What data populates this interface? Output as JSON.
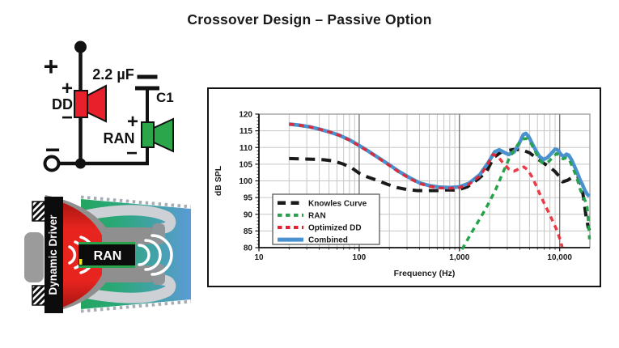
{
  "page": {
    "title": "Crossover Design – Passive Option"
  },
  "circuit": {
    "plus": "+",
    "minus": "−",
    "cap_value": "2.2 µF",
    "cap_ref": "C1",
    "dd_label": "DD",
    "ran_label": "RAN",
    "dd_color": "#e8202c",
    "ran_color": "#2ba64a"
  },
  "driver_illustration": {
    "left_label": "Dynamic Driver",
    "center_label": "RAN",
    "red": "#e8241f",
    "green": "#2aa878",
    "blue": "#5b9bd5"
  },
  "chart_data": {
    "type": "line",
    "title": "",
    "xlabel": "Frequency (Hz)",
    "ylabel": "dB SPL",
    "x_scale": "log",
    "xlim": [
      10,
      20000
    ],
    "ylim": [
      80,
      120
    ],
    "grid": true,
    "legend_position": "lower-left",
    "x_ticks": [
      10,
      100,
      1000,
      10000
    ],
    "x_tick_labels": [
      "10",
      "100",
      "1,000",
      "10,000"
    ],
    "y_ticks": [
      80,
      85,
      90,
      95,
      100,
      105,
      110,
      115,
      120
    ],
    "y_tick_labels": [
      "80",
      "85",
      "90",
      "95",
      "100",
      "105",
      "110",
      "115",
      "120"
    ],
    "series": [
      {
        "name": "Knowles Curve",
        "color": "#1a1a1a",
        "style": "dashed-long",
        "width": 4,
        "points": [
          [
            20,
            106.7
          ],
          [
            26,
            106.6
          ],
          [
            34,
            106.5
          ],
          [
            45,
            106.3
          ],
          [
            55,
            106
          ],
          [
            70,
            105
          ],
          [
            85,
            103.8
          ],
          [
            100,
            102.3
          ],
          [
            120,
            101.2
          ],
          [
            150,
            100.2
          ],
          [
            190,
            99
          ],
          [
            240,
            98
          ],
          [
            300,
            97.4
          ],
          [
            380,
            97.1
          ],
          [
            480,
            97.1
          ],
          [
            600,
            97.1
          ],
          [
            750,
            97.3
          ],
          [
            950,
            97.2
          ],
          [
            1200,
            98.2
          ],
          [
            1500,
            100.3
          ],
          [
            1850,
            102.6
          ],
          [
            2200,
            107
          ],
          [
            2600,
            108.6
          ],
          [
            3000,
            109.1
          ],
          [
            3500,
            109.4
          ],
          [
            4200,
            109.3
          ],
          [
            5000,
            108.4
          ],
          [
            6000,
            106.6
          ],
          [
            7000,
            105.2
          ],
          [
            8000,
            104.1
          ],
          [
            9000,
            102.8
          ],
          [
            10000,
            101.2
          ],
          [
            10700,
            99.7
          ],
          [
            12000,
            100.2
          ],
          [
            13800,
            101.4
          ],
          [
            15300,
            101.2
          ],
          [
            16500,
            98.5
          ],
          [
            17300,
            95
          ],
          [
            18200,
            90
          ],
          [
            19200,
            86.2
          ],
          [
            19800,
            85.2
          ]
        ]
      },
      {
        "name": "RAN",
        "color": "#27a24b",
        "style": "dashed",
        "width": 3.5,
        "points": [
          [
            1060,
            79.5
          ],
          [
            1200,
            82.3
          ],
          [
            1400,
            85.8
          ],
          [
            1650,
            89.3
          ],
          [
            1950,
            93.2
          ],
          [
            2300,
            97.4
          ],
          [
            2700,
            102.3
          ],
          [
            3100,
            106.4
          ],
          [
            3500,
            109.2
          ],
          [
            3900,
            111.2
          ],
          [
            4300,
            112.5
          ],
          [
            4700,
            112.7
          ],
          [
            5100,
            111.6
          ],
          [
            5600,
            109.3
          ],
          [
            6100,
            107
          ],
          [
            6600,
            105.6
          ],
          [
            7100,
            105.2
          ],
          [
            7800,
            105.8
          ],
          [
            8600,
            107.2
          ],
          [
            9300,
            108.2
          ],
          [
            10000,
            107.6
          ],
          [
            10800,
            106.6
          ],
          [
            11700,
            106.9
          ],
          [
            12500,
            106.3
          ],
          [
            13500,
            104
          ],
          [
            14800,
            101
          ],
          [
            16000,
            97.5
          ],
          [
            17000,
            95.5
          ],
          [
            18000,
            94
          ],
          [
            18800,
            92
          ],
          [
            19400,
            87
          ],
          [
            19800,
            82.5
          ]
        ]
      },
      {
        "name": "Optimized DD",
        "color": "#e8202c",
        "style": "dashed",
        "width": 3.5,
        "opacity": 0.88,
        "points": [
          [
            20,
            117
          ],
          [
            25,
            116.7
          ],
          [
            32,
            116.2
          ],
          [
            40,
            115.5
          ],
          [
            50,
            114.7
          ],
          [
            63,
            113.7
          ],
          [
            80,
            112.2
          ],
          [
            100,
            110.5
          ],
          [
            125,
            108.7
          ],
          [
            160,
            106.6
          ],
          [
            200,
            104.6
          ],
          [
            250,
            102.6
          ],
          [
            320,
            100.7
          ],
          [
            400,
            99.2
          ],
          [
            500,
            98.4
          ],
          [
            640,
            97.9
          ],
          [
            800,
            97.8
          ],
          [
            1000,
            98
          ],
          [
            1250,
            99
          ],
          [
            1600,
            101.5
          ],
          [
            1900,
            104.7
          ],
          [
            2150,
            107.9
          ],
          [
            2400,
            107.5
          ],
          [
            2700,
            105.5
          ],
          [
            3100,
            103.6
          ],
          [
            3500,
            102.9
          ],
          [
            4000,
            103.7
          ],
          [
            4400,
            104.2
          ],
          [
            4800,
            103.3
          ],
          [
            5300,
            101.2
          ],
          [
            5900,
            98.2
          ],
          [
            6600,
            94.9
          ],
          [
            7400,
            91.8
          ],
          [
            8300,
            88.7
          ],
          [
            9200,
            85.8
          ],
          [
            10000,
            82.8
          ],
          [
            10600,
            80.2
          ]
        ]
      },
      {
        "name": "Combined",
        "color": "#4a92cf",
        "style": "solid",
        "width": 4.5,
        "points": [
          [
            20,
            117
          ],
          [
            25,
            116.7
          ],
          [
            32,
            116.2
          ],
          [
            40,
            115.5
          ],
          [
            50,
            114.7
          ],
          [
            63,
            113.7
          ],
          [
            80,
            112.3
          ],
          [
            100,
            110.6
          ],
          [
            125,
            108.8
          ],
          [
            160,
            106.7
          ],
          [
            200,
            104.8
          ],
          [
            250,
            102.8
          ],
          [
            320,
            100.9
          ],
          [
            400,
            99.4
          ],
          [
            500,
            98.6
          ],
          [
            640,
            98.1
          ],
          [
            800,
            98
          ],
          [
            1000,
            98.2
          ],
          [
            1250,
            99.3
          ],
          [
            1600,
            101.9
          ],
          [
            1950,
            105.6
          ],
          [
            2250,
            108.7
          ],
          [
            2500,
            109.3
          ],
          [
            2800,
            108.5
          ],
          [
            3100,
            107.9
          ],
          [
            3500,
            108.6
          ],
          [
            3900,
            110.9
          ],
          [
            4350,
            113.9
          ],
          [
            4600,
            114.2
          ],
          [
            4900,
            113.3
          ],
          [
            5300,
            111.3
          ],
          [
            5800,
            109
          ],
          [
            6300,
            107.3
          ],
          [
            6900,
            106.4
          ],
          [
            7500,
            106.9
          ],
          [
            8200,
            108.1
          ],
          [
            9000,
            109.5
          ],
          [
            9600,
            109.2
          ],
          [
            10300,
            107.9
          ],
          [
            11000,
            107.3
          ],
          [
            11700,
            108
          ],
          [
            12300,
            107.7
          ],
          [
            13200,
            106.2
          ],
          [
            14200,
            104
          ],
          [
            15000,
            102.4
          ],
          [
            16000,
            100.2
          ],
          [
            16800,
            99
          ],
          [
            17800,
            97.2
          ],
          [
            18800,
            96
          ],
          [
            19800,
            95.4
          ]
        ]
      }
    ]
  }
}
